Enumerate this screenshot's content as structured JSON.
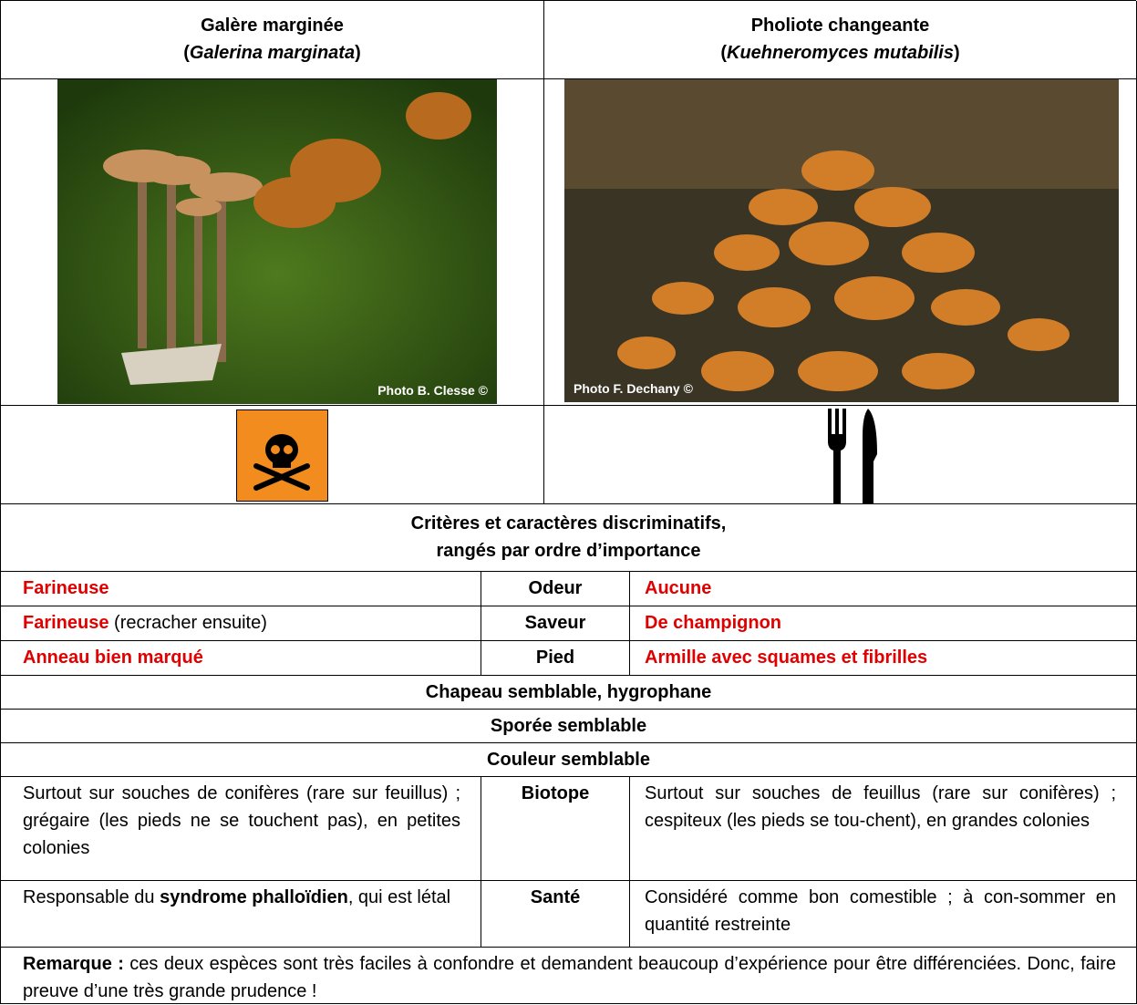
{
  "columns": [
    {
      "name": "Galère marginée",
      "latin_open": "(",
      "latin": "Galerina marginata",
      "latin_close": ")",
      "photo_credit": "Photo B. Clesse ©"
    },
    {
      "name": "Pholiote changeante",
      "latin_open": "(",
      "latin": "Kuehneromyces mutabilis",
      "latin_close": ")",
      "photo_credit": "Photo F. Dechany ©"
    }
  ],
  "criteria_title": [
    "Critères et caractères discriminatifs,",
    "rangés par ordre d’importance"
  ],
  "comparison_rows": [
    {
      "label": "Odeur",
      "left": [
        "Farineuse"
      ],
      "right": [
        "Aucune"
      ]
    },
    {
      "label": "Saveur",
      "left": [
        "Farineuse",
        " (recracher ensuite)"
      ],
      "right": [
        "De champignon"
      ]
    },
    {
      "label": "Pied",
      "left": [
        "Anneau bien marqué"
      ],
      "right": [
        "Armille avec squames et fibrilles"
      ]
    },
    {
      "label": "Biotope",
      "left": [
        "Surtout sur souches de conifères (rare sur feuillus) ; grégaire (les pieds ne se touchent pas), en petites colonies"
      ],
      "right": [
        "Surtout sur souches de feuillus (rare sur conifères) ; cespiteux (les pieds se tou-chent), en grandes colonies"
      ]
    },
    {
      "label": "Santé",
      "left": [
        "Responsable du ",
        "syndrome phalloïdien",
        ", qui est létal"
      ],
      "right": [
        "Considéré comme bon comestible ; à con-sommer en quantité restreinte"
      ]
    }
  ],
  "shared_rows": [
    "Chapeau semblable, hygrophane",
    "Sporée semblable",
    "Couleur semblable"
  ],
  "remark": {
    "label": "Remarque :",
    "text": " ces deux espèces sont très faciles à confondre et demandent beaucoup d’expérience pour être différenciées. Donc, faire preuve d’une très grande prudence !"
  }
}
